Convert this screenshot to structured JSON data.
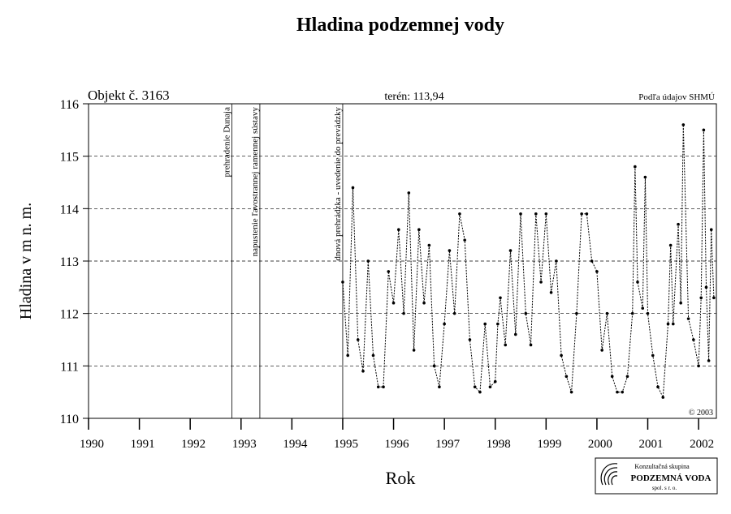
{
  "chart_data": {
    "type": "line",
    "title": "Hladina podzemnej vody",
    "object_label": "Objekt č. 3163",
    "terrain_label": "terén: 113,94",
    "source_label": "Podľa údajov SHMÚ",
    "copyright": "© 2003",
    "ylabel": "Hladina v m n. m.",
    "xlabel": "Rok",
    "logo": {
      "line1": "Konzultačná skupina",
      "line2": "PODZEMNÁ VODA",
      "line3": "spol. s r. o."
    },
    "events": [
      {
        "x": 1992.82,
        "label": "prehradenie Dunaja"
      },
      {
        "x": 1993.37,
        "label": "napustenie ľavostrannej ramennej sústavy"
      },
      {
        "x": 1995.0,
        "label": "dnová prehrádzka - uvedenie do prevádzky"
      }
    ],
    "xlim": [
      1990,
      2002.35
    ],
    "xticks": [
      1990,
      1991,
      1992,
      1993,
      1994,
      1995,
      1996,
      1997,
      1998,
      1999,
      2000,
      2001,
      2002
    ],
    "ylim": [
      110,
      116
    ],
    "yticks": [
      110,
      111,
      112,
      113,
      114,
      115,
      116
    ],
    "grid": true,
    "color": "#000000",
    "x": [
      1995.0,
      1995.1,
      1995.2,
      1995.3,
      1995.4,
      1995.5,
      1995.6,
      1995.7,
      1995.8,
      1995.9,
      1996.0,
      1996.1,
      1996.2,
      1996.3,
      1996.4,
      1996.5,
      1996.6,
      1996.7,
      1996.8,
      1996.9,
      1997.0,
      1997.1,
      1997.2,
      1997.3,
      1997.4,
      1997.5,
      1997.6,
      1997.7,
      1997.8,
      1997.9,
      1998.0,
      1998.05,
      1998.1,
      1998.2,
      1998.3,
      1998.4,
      1998.5,
      1998.6,
      1998.7,
      1998.8,
      1998.9,
      1999.0,
      1999.1,
      1999.2,
      1999.3,
      1999.4,
      1999.5,
      1999.6,
      1999.7,
      1999.8,
      1999.9,
      2000.0,
      2000.1,
      2000.2,
      2000.3,
      2000.4,
      2000.5,
      2000.6,
      2000.7,
      2000.75,
      2000.8,
      2000.9,
      2000.95,
      2001.0,
      2001.1,
      2001.2,
      2001.3,
      2001.4,
      2001.45,
      2001.5,
      2001.6,
      2001.65,
      2001.7,
      2001.8,
      2001.9,
      2002.0,
      2002.05,
      2002.1,
      2002.15,
      2002.2,
      2002.25,
      2002.3
    ],
    "values": [
      112.6,
      111.2,
      114.4,
      111.5,
      110.9,
      113.0,
      111.2,
      110.6,
      110.6,
      112.8,
      112.2,
      113.6,
      112.0,
      114.3,
      111.3,
      113.6,
      112.2,
      113.3,
      111.0,
      110.6,
      111.8,
      113.2,
      112.0,
      113.9,
      113.4,
      111.5,
      110.6,
      110.5,
      111.8,
      110.6,
      110.7,
      111.8,
      112.3,
      111.4,
      113.2,
      111.6,
      113.9,
      112.0,
      111.4,
      113.9,
      112.6,
      113.9,
      112.4,
      113.0,
      111.2,
      110.8,
      110.5,
      112.0,
      113.9,
      113.9,
      113.0,
      112.8,
      111.3,
      112.0,
      110.8,
      110.5,
      110.5,
      110.8,
      112.0,
      114.8,
      112.6,
      112.1,
      114.6,
      112.0,
      111.2,
      110.6,
      110.4,
      111.8,
      113.3,
      111.8,
      113.7,
      112.2,
      115.6,
      111.9,
      111.5,
      111.0,
      112.3,
      115.5,
      112.5,
      111.1,
      113.6,
      112.3
    ]
  }
}
